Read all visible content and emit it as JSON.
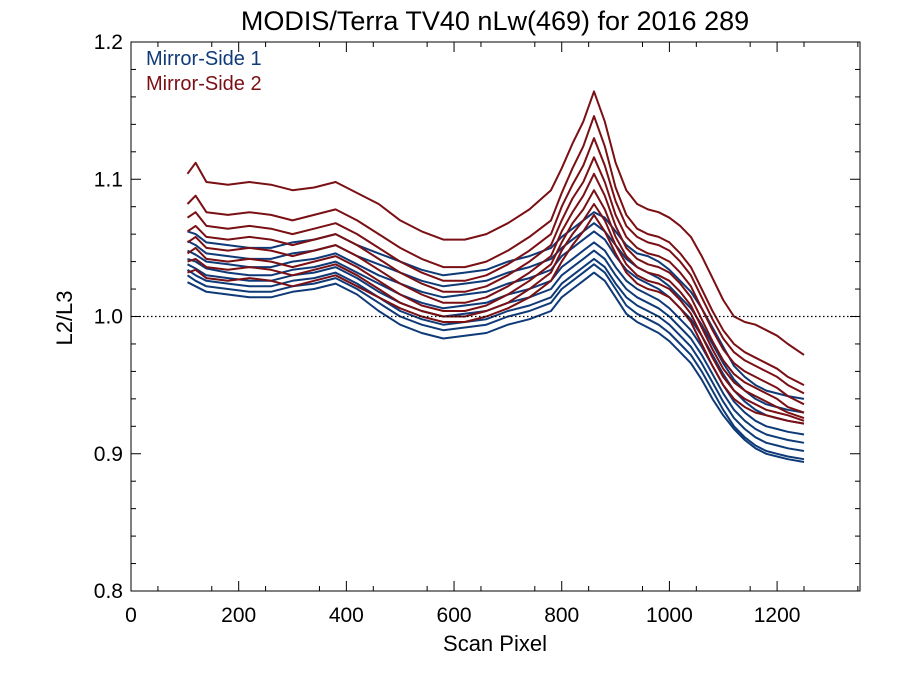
{
  "chart_data": {
    "type": "line",
    "title": "MODIS/Terra TV40 nLw(469) for 2016 289",
    "xlabel": "Scan Pixel",
    "ylabel": "L2/L3",
    "xlim": [
      0,
      1354
    ],
    "ylim": [
      0.8,
      1.2
    ],
    "x_ticks": [
      0,
      200,
      400,
      600,
      800,
      1000,
      1200
    ],
    "y_ticks": [
      0.8,
      0.9,
      1.0,
      1.1,
      1.2
    ],
    "x_tick_labels": [
      "0",
      "200",
      "400",
      "600",
      "800",
      "1000",
      "1200"
    ],
    "y_tick_labels": [
      "0.8",
      "0.9",
      "1.0",
      "1.1",
      "1.2"
    ],
    "reference_line": {
      "y": 1.0,
      "style": "dotted"
    },
    "grid": false,
    "legend_position": "top-left",
    "x": [
      105,
      120,
      140,
      180,
      220,
      260,
      300,
      340,
      380,
      420,
      460,
      500,
      540,
      580,
      620,
      660,
      700,
      740,
      780,
      800,
      820,
      840,
      860,
      880,
      900,
      920,
      940,
      960,
      980,
      1000,
      1020,
      1040,
      1060,
      1080,
      1100,
      1120,
      1140,
      1160,
      1180,
      1200,
      1220,
      1250
    ],
    "series": [
      {
        "name": "Mirror-Side 1",
        "color": "#0f3a78",
        "lines": [
          [
            1.062,
            1.06,
            1.054,
            1.052,
            1.05,
            1.05,
            1.054,
            1.056,
            1.06,
            1.052,
            1.046,
            1.04,
            1.034,
            1.03,
            1.032,
            1.034,
            1.04,
            1.044,
            1.05,
            1.058,
            1.064,
            1.07,
            1.076,
            1.072,
            1.062,
            1.052,
            1.046,
            1.044,
            1.04,
            1.034,
            1.026,
            1.018,
            1.006,
            0.992,
            0.978,
            0.964,
            0.956,
            0.95,
            0.946,
            0.944,
            0.942,
            0.94
          ],
          [
            1.055,
            1.052,
            1.046,
            1.044,
            1.042,
            1.042,
            1.046,
            1.048,
            1.052,
            1.044,
            1.038,
            1.032,
            1.026,
            1.022,
            1.024,
            1.026,
            1.032,
            1.036,
            1.042,
            1.05,
            1.056,
            1.062,
            1.068,
            1.062,
            1.052,
            1.042,
            1.036,
            1.032,
            1.028,
            1.022,
            1.014,
            1.006,
            0.994,
            0.98,
            0.966,
            0.954,
            0.946,
            0.94,
            0.936,
            0.934,
            0.932,
            0.93
          ],
          [
            1.048,
            1.045,
            1.04,
            1.038,
            1.036,
            1.036,
            1.04,
            1.042,
            1.046,
            1.038,
            1.03,
            1.024,
            1.018,
            1.014,
            1.016,
            1.018,
            1.024,
            1.028,
            1.034,
            1.044,
            1.05,
            1.056,
            1.062,
            1.056,
            1.044,
            1.034,
            1.028,
            1.024,
            1.02,
            1.014,
            1.006,
            0.998,
            0.986,
            0.972,
            0.958,
            0.946,
            0.938,
            0.932,
            0.928,
            0.926,
            0.924,
            0.922
          ],
          [
            1.042,
            1.04,
            1.035,
            1.032,
            1.03,
            1.03,
            1.034,
            1.036,
            1.04,
            1.032,
            1.024,
            1.016,
            1.01,
            1.006,
            1.008,
            1.01,
            1.016,
            1.02,
            1.026,
            1.036,
            1.042,
            1.048,
            1.054,
            1.048,
            1.036,
            1.026,
            1.02,
            1.016,
            1.012,
            1.006,
            0.998,
            0.99,
            0.978,
            0.964,
            0.95,
            0.938,
            0.93,
            0.924,
            0.92,
            0.918,
            0.916,
            0.914
          ],
          [
            1.038,
            1.035,
            1.03,
            1.028,
            1.026,
            1.026,
            1.03,
            1.032,
            1.036,
            1.028,
            1.018,
            1.01,
            1.004,
            1.0,
            1.002,
            1.004,
            1.01,
            1.014,
            1.02,
            1.03,
            1.036,
            1.042,
            1.048,
            1.042,
            1.03,
            1.02,
            1.014,
            1.01,
            1.006,
            1.0,
            0.992,
            0.984,
            0.972,
            0.958,
            0.944,
            0.932,
            0.924,
            0.918,
            0.914,
            0.912,
            0.91,
            0.908
          ],
          [
            1.034,
            1.03,
            1.026,
            1.024,
            1.022,
            1.022,
            1.026,
            1.028,
            1.032,
            1.024,
            1.014,
            1.004,
            0.998,
            0.994,
            0.996,
            0.998,
            1.004,
            1.008,
            1.014,
            1.024,
            1.03,
            1.036,
            1.042,
            1.036,
            1.024,
            1.014,
            1.008,
            1.004,
            1.0,
            0.994,
            0.986,
            0.978,
            0.966,
            0.952,
            0.938,
            0.926,
            0.918,
            0.912,
            0.908,
            0.906,
            0.904,
            0.902
          ],
          [
            1.03,
            1.026,
            1.022,
            1.02,
            1.018,
            1.018,
            1.022,
            1.024,
            1.028,
            1.02,
            1.01,
            1.0,
            0.994,
            0.99,
            0.992,
            0.994,
            1.0,
            1.004,
            1.01,
            1.02,
            1.026,
            1.032,
            1.038,
            1.032,
            1.02,
            1.008,
            1.002,
            0.998,
            0.994,
            0.988,
            0.98,
            0.972,
            0.96,
            0.946,
            0.932,
            0.92,
            0.912,
            0.906,
            0.902,
            0.9,
            0.898,
            0.896
          ],
          [
            1.025,
            1.022,
            1.018,
            1.016,
            1.014,
            1.014,
            1.018,
            1.02,
            1.024,
            1.016,
            1.004,
            0.994,
            0.988,
            0.984,
            0.986,
            0.988,
            0.994,
            0.998,
            1.004,
            1.014,
            1.02,
            1.026,
            1.032,
            1.026,
            1.014,
            1.002,
            0.996,
            0.992,
            0.988,
            0.982,
            0.974,
            0.966,
            0.954,
            0.94,
            0.928,
            0.918,
            0.91,
            0.904,
            0.9,
            0.898,
            0.896,
            0.894
          ]
        ]
      },
      {
        "name": "Mirror-Side 2",
        "color": "#7a0f14",
        "lines": [
          [
            1.104,
            1.112,
            1.098,
            1.096,
            1.098,
            1.096,
            1.092,
            1.094,
            1.098,
            1.09,
            1.082,
            1.07,
            1.062,
            1.056,
            1.056,
            1.06,
            1.068,
            1.078,
            1.092,
            1.108,
            1.126,
            1.142,
            1.164,
            1.142,
            1.112,
            1.092,
            1.082,
            1.078,
            1.076,
            1.072,
            1.066,
            1.058,
            1.044,
            1.028,
            1.012,
            1.0,
            0.996,
            0.994,
            0.99,
            0.986,
            0.98,
            0.972
          ],
          [
            1.082,
            1.088,
            1.076,
            1.074,
            1.076,
            1.074,
            1.07,
            1.074,
            1.078,
            1.07,
            1.06,
            1.05,
            1.042,
            1.036,
            1.036,
            1.04,
            1.048,
            1.058,
            1.07,
            1.09,
            1.108,
            1.124,
            1.146,
            1.124,
            1.094,
            1.074,
            1.064,
            1.06,
            1.058,
            1.054,
            1.046,
            1.036,
            1.02,
            1.004,
            0.99,
            0.98,
            0.974,
            0.97,
            0.966,
            0.962,
            0.956,
            0.95
          ],
          [
            1.072,
            1.076,
            1.066,
            1.064,
            1.066,
            1.064,
            1.06,
            1.064,
            1.068,
            1.06,
            1.05,
            1.04,
            1.032,
            1.026,
            1.026,
            1.03,
            1.038,
            1.048,
            1.06,
            1.08,
            1.096,
            1.11,
            1.13,
            1.11,
            1.084,
            1.066,
            1.058,
            1.054,
            1.052,
            1.048,
            1.04,
            1.03,
            1.014,
            0.998,
            0.984,
            0.974,
            0.968,
            0.964,
            0.96,
            0.956,
            0.95,
            0.944
          ],
          [
            1.062,
            1.066,
            1.058,
            1.056,
            1.058,
            1.056,
            1.052,
            1.056,
            1.06,
            1.052,
            1.042,
            1.032,
            1.024,
            1.018,
            1.018,
            1.022,
            1.03,
            1.04,
            1.052,
            1.07,
            1.086,
            1.098,
            1.116,
            1.098,
            1.074,
            1.058,
            1.05,
            1.046,
            1.044,
            1.04,
            1.032,
            1.022,
            1.006,
            0.99,
            0.976,
            0.966,
            0.96,
            0.956,
            0.952,
            0.948,
            0.942,
            0.936
          ],
          [
            1.054,
            1.058,
            1.05,
            1.048,
            1.05,
            1.048,
            1.044,
            1.048,
            1.052,
            1.044,
            1.034,
            1.024,
            1.016,
            1.01,
            1.01,
            1.014,
            1.022,
            1.032,
            1.044,
            1.062,
            1.076,
            1.088,
            1.104,
            1.088,
            1.066,
            1.05,
            1.042,
            1.038,
            1.036,
            1.032,
            1.024,
            1.014,
            0.998,
            0.982,
            0.968,
            0.958,
            0.952,
            0.948,
            0.944,
            0.94,
            0.934,
            0.93
          ],
          [
            1.046,
            1.05,
            1.042,
            1.04,
            1.042,
            1.04,
            1.036,
            1.04,
            1.044,
            1.036,
            1.026,
            1.016,
            1.008,
            1.004,
            1.004,
            1.008,
            1.016,
            1.026,
            1.038,
            1.054,
            1.068,
            1.078,
            1.092,
            1.078,
            1.058,
            1.044,
            1.036,
            1.032,
            1.03,
            1.026,
            1.018,
            1.008,
            0.992,
            0.976,
            0.962,
            0.952,
            0.946,
            0.942,
            0.938,
            0.934,
            0.93,
            0.926
          ],
          [
            1.04,
            1.042,
            1.036,
            1.034,
            1.036,
            1.034,
            1.03,
            1.034,
            1.038,
            1.03,
            1.02,
            1.01,
            1.004,
            1.0,
            1.0,
            1.004,
            1.01,
            1.02,
            1.032,
            1.048,
            1.06,
            1.07,
            1.082,
            1.07,
            1.052,
            1.038,
            1.03,
            1.026,
            1.024,
            1.02,
            1.012,
            1.002,
            0.986,
            0.97,
            0.956,
            0.946,
            0.94,
            0.936,
            0.932,
            0.93,
            0.928,
            0.924
          ],
          [
            1.032,
            1.034,
            1.028,
            1.026,
            1.028,
            1.026,
            1.022,
            1.026,
            1.03,
            1.022,
            1.014,
            1.006,
            1.0,
            0.996,
            0.996,
            1.0,
            1.006,
            1.014,
            1.026,
            1.04,
            1.052,
            1.062,
            1.074,
            1.062,
            1.046,
            1.032,
            1.024,
            1.02,
            1.018,
            1.014,
            1.006,
            0.996,
            0.98,
            0.964,
            0.95,
            0.94,
            0.934,
            0.93,
            0.928,
            0.926,
            0.924,
            0.922
          ]
        ]
      }
    ]
  }
}
